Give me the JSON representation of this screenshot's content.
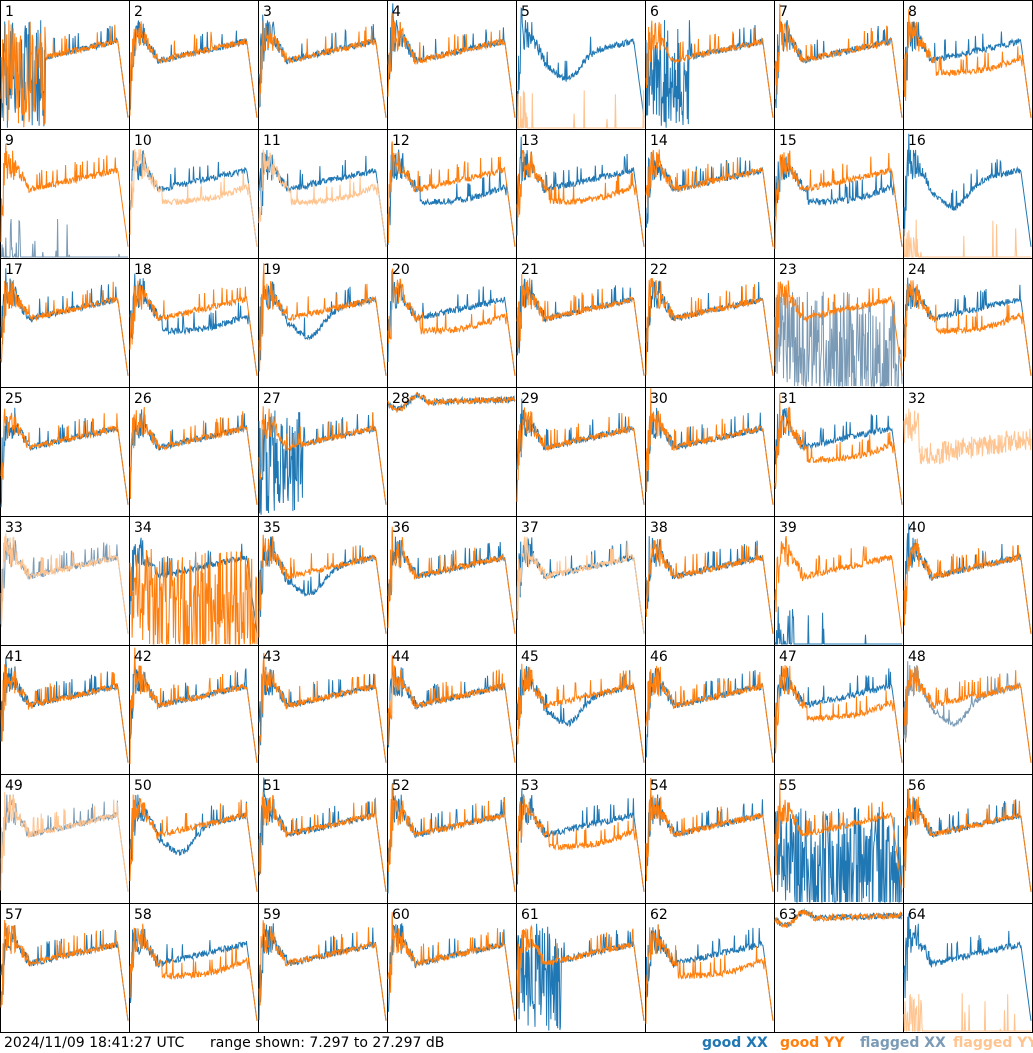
{
  "footer": {
    "timestamp": "2024/11/09 18:41:27 UTC",
    "range_text": "range shown: 7.297 to 27.297 dB"
  },
  "legend": [
    {
      "prefix": "good",
      "pol": "XX",
      "color": "#1f77b4"
    },
    {
      "prefix": "good",
      "pol": "YY",
      "color": "#ff7f0e"
    },
    {
      "prefix": "flagged",
      "pol": "XX",
      "color": "#7a9ab5"
    },
    {
      "prefix": "flagged",
      "pol": "YY",
      "color": "#ffc48f"
    }
  ],
  "colors": {
    "good_xx": "#1f77b4",
    "good_yy": "#ff7f0e",
    "flagged_xx": "#7a9ab5",
    "flagged_yy": "#ffc48f"
  },
  "chart_data": {
    "type": "line",
    "grid": "8x8 small multiples, one panel per tile",
    "ylim_db": [
      7.297,
      27.297
    ],
    "series_names": [
      "good XX",
      "good YY",
      "flagged XX",
      "flagged YY"
    ],
    "panels": [
      {
        "id": "1",
        "xx": {
          "s": "good",
          "p": 3
        },
        "yy": {
          "s": "good",
          "p": 3
        }
      },
      {
        "id": "2",
        "xx": {
          "s": "good",
          "p": 0
        },
        "yy": {
          "s": "good",
          "p": 0
        }
      },
      {
        "id": "3",
        "xx": {
          "s": "good",
          "p": 0
        },
        "yy": {
          "s": "good",
          "p": 0
        }
      },
      {
        "id": "4",
        "xx": {
          "s": "good",
          "p": 0
        },
        "yy": {
          "s": "good",
          "p": 0
        }
      },
      {
        "id": "5",
        "xx": {
          "s": "good",
          "p": 2
        },
        "yy": {
          "s": "flagged",
          "p": 5
        }
      },
      {
        "id": "6",
        "xx": {
          "s": "good",
          "p": 3
        },
        "yy": {
          "s": "good",
          "p": 0
        }
      },
      {
        "id": "7",
        "xx": {
          "s": "good",
          "p": 0
        },
        "yy": {
          "s": "good",
          "p": 0
        }
      },
      {
        "id": "8",
        "xx": {
          "s": "good",
          "p": 0
        },
        "yy": {
          "s": "good",
          "p": 1
        }
      },
      {
        "id": "9",
        "xx": {
          "s": "flagged",
          "p": 5
        },
        "yy": {
          "s": "good",
          "p": 0
        }
      },
      {
        "id": "10",
        "xx": {
          "s": "good",
          "p": 0
        },
        "yy": {
          "s": "flagged",
          "p": 1
        }
      },
      {
        "id": "11",
        "xx": {
          "s": "good",
          "p": 0
        },
        "yy": {
          "s": "flagged",
          "p": 1
        }
      },
      {
        "id": "12",
        "xx": {
          "s": "good",
          "p": 1
        },
        "yy": {
          "s": "good",
          "p": 0
        }
      },
      {
        "id": "13",
        "xx": {
          "s": "good",
          "p": 0
        },
        "yy": {
          "s": "good",
          "p": 1
        }
      },
      {
        "id": "14",
        "xx": {
          "s": "good",
          "p": 0
        },
        "yy": {
          "s": "good",
          "p": 0
        }
      },
      {
        "id": "15",
        "xx": {
          "s": "good",
          "p": 1
        },
        "yy": {
          "s": "good",
          "p": 0
        }
      },
      {
        "id": "16",
        "xx": {
          "s": "good",
          "p": 2
        },
        "yy": {
          "s": "flagged",
          "p": 5
        }
      },
      {
        "id": "17",
        "xx": {
          "s": "good",
          "p": 0
        },
        "yy": {
          "s": "good",
          "p": 0
        }
      },
      {
        "id": "18",
        "xx": {
          "s": "good",
          "p": 1
        },
        "yy": {
          "s": "good",
          "p": 0
        }
      },
      {
        "id": "19",
        "xx": {
          "s": "good",
          "p": 2
        },
        "yy": {
          "s": "good",
          "p": 0
        }
      },
      {
        "id": "20",
        "xx": {
          "s": "good",
          "p": 0
        },
        "yy": {
          "s": "good",
          "p": 1
        }
      },
      {
        "id": "21",
        "xx": {
          "s": "good",
          "p": 0
        },
        "yy": {
          "s": "good",
          "p": 0
        }
      },
      {
        "id": "22",
        "xx": {
          "s": "good",
          "p": 0
        },
        "yy": {
          "s": "good",
          "p": 0
        }
      },
      {
        "id": "23",
        "xx": {
          "s": "flagged",
          "p": 4
        },
        "yy": {
          "s": "good",
          "p": 0
        }
      },
      {
        "id": "24",
        "xx": {
          "s": "good",
          "p": 0
        },
        "yy": {
          "s": "good",
          "p": 1
        }
      },
      {
        "id": "25",
        "xx": {
          "s": "good",
          "p": 0
        },
        "yy": {
          "s": "good",
          "p": 0
        }
      },
      {
        "id": "26",
        "xx": {
          "s": "good",
          "p": 0
        },
        "yy": {
          "s": "good",
          "p": 0
        }
      },
      {
        "id": "27",
        "xx": {
          "s": "good",
          "p": 3
        },
        "yy": {
          "s": "good",
          "p": 0
        }
      },
      {
        "id": "28",
        "xx": {
          "s": "good",
          "p": 6
        },
        "yy": {
          "s": "good",
          "p": 6
        }
      },
      {
        "id": "29",
        "xx": {
          "s": "good",
          "p": 0
        },
        "yy": {
          "s": "good",
          "p": 0
        }
      },
      {
        "id": "30",
        "xx": {
          "s": "good",
          "p": 0
        },
        "yy": {
          "s": "good",
          "p": 0
        }
      },
      {
        "id": "31",
        "xx": {
          "s": "good",
          "p": 0
        },
        "yy": {
          "s": "good",
          "p": 1
        }
      },
      {
        "id": "32",
        "xx": null,
        "yy": {
          "s": "flagged",
          "p": 7
        }
      },
      {
        "id": "33",
        "xx": {
          "s": "flagged",
          "p": 0
        },
        "yy": {
          "s": "flagged",
          "p": 0
        }
      },
      {
        "id": "34",
        "xx": {
          "s": "good",
          "p": 0
        },
        "yy": {
          "s": "good",
          "p": 4
        }
      },
      {
        "id": "35",
        "xx": {
          "s": "good",
          "p": 2
        },
        "yy": {
          "s": "good",
          "p": 0
        }
      },
      {
        "id": "36",
        "xx": {
          "s": "good",
          "p": 0
        },
        "yy": {
          "s": "good",
          "p": 0
        }
      },
      {
        "id": "37",
        "xx": {
          "s": "good",
          "p": 0
        },
        "yy": {
          "s": "flagged",
          "p": 0
        }
      },
      {
        "id": "38",
        "xx": {
          "s": "good",
          "p": 0
        },
        "yy": {
          "s": "good",
          "p": 0
        }
      },
      {
        "id": "39",
        "xx": {
          "s": "good",
          "p": 5
        },
        "yy": {
          "s": "good",
          "p": 0
        }
      },
      {
        "id": "40",
        "xx": {
          "s": "good",
          "p": 0
        },
        "yy": {
          "s": "good",
          "p": 0
        }
      },
      {
        "id": "41",
        "xx": {
          "s": "good",
          "p": 0
        },
        "yy": {
          "s": "good",
          "p": 0
        }
      },
      {
        "id": "42",
        "xx": {
          "s": "good",
          "p": 0
        },
        "yy": {
          "s": "good",
          "p": 0
        }
      },
      {
        "id": "43",
        "xx": {
          "s": "good",
          "p": 0
        },
        "yy": {
          "s": "good",
          "p": 0
        }
      },
      {
        "id": "44",
        "xx": {
          "s": "good",
          "p": 0
        },
        "yy": {
          "s": "good",
          "p": 0
        }
      },
      {
        "id": "45",
        "xx": {
          "s": "good",
          "p": 2
        },
        "yy": {
          "s": "good",
          "p": 0
        }
      },
      {
        "id": "46",
        "xx": {
          "s": "good",
          "p": 0
        },
        "yy": {
          "s": "good",
          "p": 0
        }
      },
      {
        "id": "47",
        "xx": {
          "s": "good",
          "p": 0
        },
        "yy": {
          "s": "good",
          "p": 1
        }
      },
      {
        "id": "48",
        "xx": {
          "s": "flagged",
          "p": 2
        },
        "yy": {
          "s": "good",
          "p": 0
        }
      },
      {
        "id": "49",
        "xx": {
          "s": "flagged",
          "p": 0
        },
        "yy": {
          "s": "flagged",
          "p": 0
        }
      },
      {
        "id": "50",
        "xx": {
          "s": "good",
          "p": 2
        },
        "yy": {
          "s": "good",
          "p": 0
        }
      },
      {
        "id": "51",
        "xx": {
          "s": "good",
          "p": 0
        },
        "yy": {
          "s": "good",
          "p": 0
        }
      },
      {
        "id": "52",
        "xx": {
          "s": "good",
          "p": 0
        },
        "yy": {
          "s": "good",
          "p": 0
        }
      },
      {
        "id": "53",
        "xx": {
          "s": "good",
          "p": 0
        },
        "yy": {
          "s": "good",
          "p": 1
        }
      },
      {
        "id": "54",
        "xx": {
          "s": "good",
          "p": 0
        },
        "yy": {
          "s": "good",
          "p": 0
        }
      },
      {
        "id": "55",
        "xx": {
          "s": "good",
          "p": 4
        },
        "yy": {
          "s": "good",
          "p": 0
        }
      },
      {
        "id": "56",
        "xx": {
          "s": "good",
          "p": 0
        },
        "yy": {
          "s": "good",
          "p": 0
        }
      },
      {
        "id": "57",
        "xx": {
          "s": "good",
          "p": 0
        },
        "yy": {
          "s": "good",
          "p": 0
        }
      },
      {
        "id": "58",
        "xx": {
          "s": "good",
          "p": 0
        },
        "yy": {
          "s": "good",
          "p": 1
        }
      },
      {
        "id": "59",
        "xx": {
          "s": "good",
          "p": 0
        },
        "yy": {
          "s": "good",
          "p": 0
        }
      },
      {
        "id": "60",
        "xx": {
          "s": "good",
          "p": 0
        },
        "yy": {
          "s": "good",
          "p": 0
        }
      },
      {
        "id": "61",
        "xx": {
          "s": "good",
          "p": 3
        },
        "yy": {
          "s": "good",
          "p": 0
        }
      },
      {
        "id": "62",
        "xx": {
          "s": "good",
          "p": 0
        },
        "yy": {
          "s": "good",
          "p": 1
        }
      },
      {
        "id": "63",
        "xx": {
          "s": "good",
          "p": 6
        },
        "yy": {
          "s": "good",
          "p": 6
        }
      },
      {
        "id": "64",
        "xx": {
          "s": "good",
          "p": 0
        },
        "yy": {
          "s": "flagged",
          "p": 5
        }
      }
    ]
  }
}
